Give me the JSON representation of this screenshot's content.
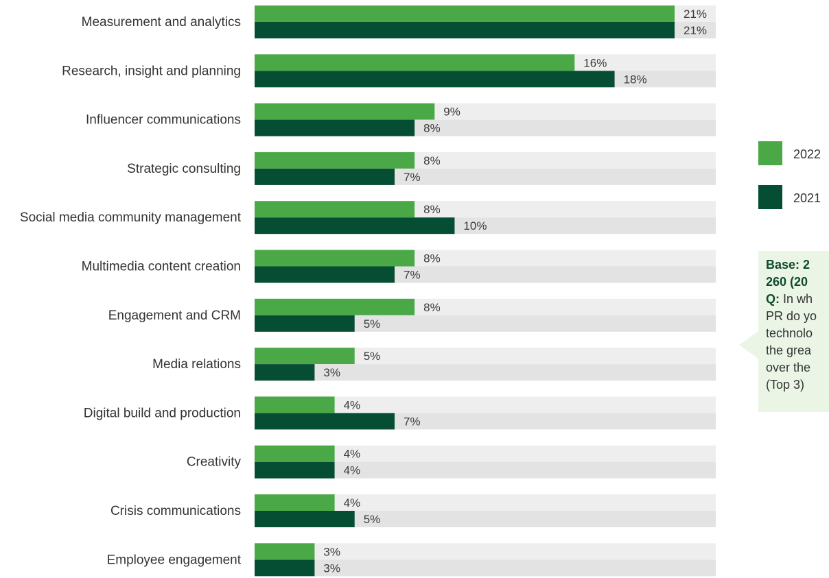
{
  "chart_data": {
    "type": "bar",
    "orientation": "horizontal",
    "categories": [
      "Measurement and analytics",
      "Research, insight and planning",
      "Influencer communications",
      "Strategic consulting",
      "Social media community management",
      "Multimedia content creation",
      "Engagement and CRM",
      "Media relations",
      "Digital build and production",
      "Creativity",
      "Crisis communications",
      "Employee engagement"
    ],
    "series": [
      {
        "name": "2022",
        "color": "#4aa847",
        "values": [
          21,
          16,
          9,
          8,
          8,
          8,
          8,
          5,
          4,
          4,
          4,
          3
        ],
        "labels": [
          "21%",
          "16%",
          "9%",
          "8%",
          "8%",
          "8%",
          "8%",
          "5%",
          "4%",
          "4%",
          "4%",
          "3%"
        ]
      },
      {
        "name": "2021",
        "color": "#064e33",
        "values": [
          21,
          18,
          8,
          7,
          10,
          7,
          5,
          3,
          7,
          4,
          5,
          3
        ],
        "labels": [
          "21%",
          "18%",
          "8%",
          "7%",
          "10%",
          "7%",
          "5%",
          "3%",
          "7%",
          "4%",
          "5%",
          "3%"
        ]
      }
    ],
    "xlim": [
      0,
      24
    ],
    "unit": "%",
    "background_track_colors": [
      "#eeeeee",
      "#e3e3e3"
    ],
    "legend": {
      "placement": "right",
      "entries": [
        "2022",
        "2021"
      ]
    },
    "title": "",
    "xlabel": "",
    "ylabel": ""
  },
  "base_note": {
    "base_label": "Base: 2",
    "base_line2": "260 (20",
    "q_label": "Q:",
    "q_text_lines": [
      "In wh",
      "PR do yo",
      "technolo",
      "the grea",
      "over the",
      "(Top 3)"
    ]
  }
}
